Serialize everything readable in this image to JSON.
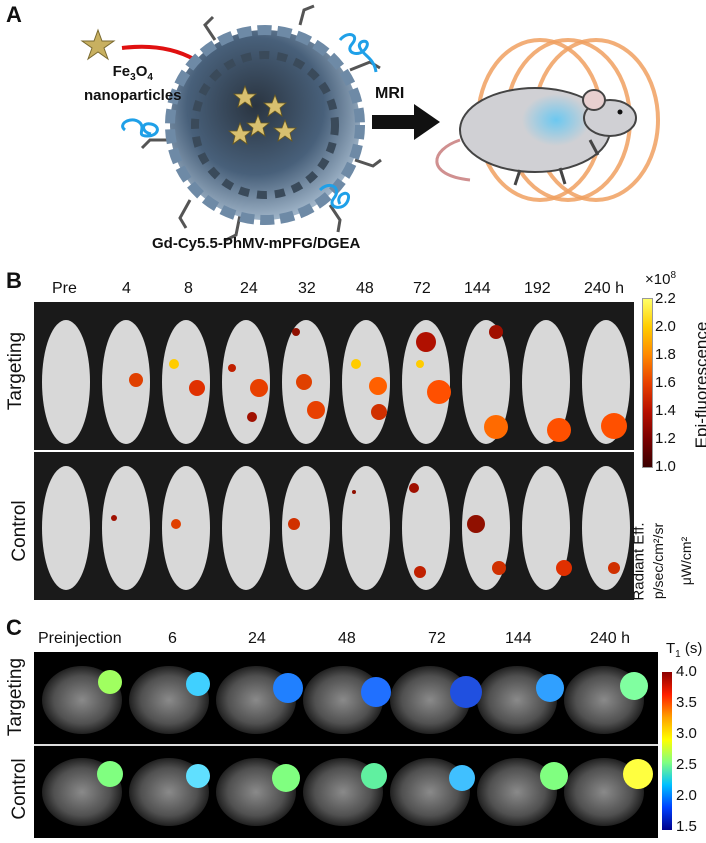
{
  "panel_a": {
    "letter": "A",
    "particle_label_line1": "Fe",
    "particle_sub1": "3",
    "particle_o": "O",
    "particle_sub2": "4",
    "particle_label_line2": "nanoparticles",
    "arrow_label": "MRI",
    "caption": "Gd-Cy5.5-PhMV-mPFG/DGEA"
  },
  "panel_b": {
    "letter": "B",
    "timepoints": [
      "Pre",
      "4",
      "8",
      "24",
      "32",
      "48",
      "72",
      "144",
      "192",
      "240 h"
    ],
    "row_labels": [
      "Targeting",
      "Control"
    ],
    "colorbar": {
      "exponent_label": "×10",
      "exponent_power": "8",
      "ticks": [
        "2.2",
        "2.0",
        "1.8",
        "1.6",
        "1.4",
        "1.2",
        "1.0"
      ],
      "title": "Epi-fluorescence",
      "unit_line1": "Radiant Eff.",
      "unit_line2": "p/sec/cm²/sr",
      "unit_line3": "μW/cm²",
      "colors": [
        "#ffff66",
        "#ffcc00",
        "#ff8800",
        "#e84000",
        "#b81000",
        "#7a0000",
        "#3a0000"
      ]
    }
  },
  "panel_c": {
    "letter": "C",
    "timepoints": [
      "Preinjection",
      "6",
      "24",
      "48",
      "72",
      "144",
      "240 h"
    ],
    "row_labels": [
      "Targeting",
      "Control"
    ],
    "colorbar": {
      "title_t": "T",
      "title_sub": "1",
      "title_unit": " (s)",
      "ticks": [
        "4.0",
        "3.5",
        "3.0",
        "2.5",
        "2.0",
        "1.5"
      ],
      "colors": [
        "#8b0000",
        "#ff2000",
        "#ffa000",
        "#ffff00",
        "#80ff80",
        "#00c0ff",
        "#0040ff",
        "#00008b"
      ]
    }
  }
}
